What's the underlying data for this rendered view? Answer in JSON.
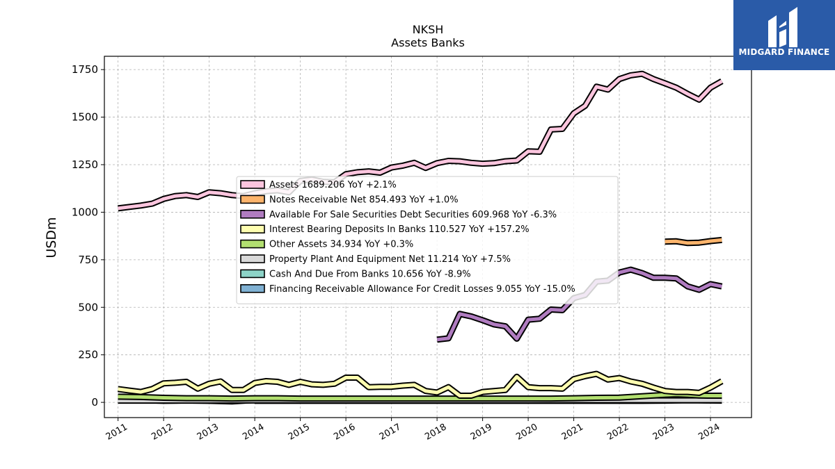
{
  "brand": {
    "logo_text": "MIDGARD FINANCE",
    "logo_bg": "#2a5ba8",
    "logo_icon": "midgard-mark-icon"
  },
  "chart_data": {
    "type": "line",
    "title": "NKSH",
    "subtitle": "Assets Banks",
    "ylabel": "USDm",
    "xlabel": "",
    "xlim": [
      2010.7,
      2024.9
    ],
    "ylim": [
      -80,
      1820
    ],
    "yticks": [
      0,
      250,
      500,
      750,
      1000,
      1250,
      1500,
      1750
    ],
    "xticks": [
      2011,
      2012,
      2013,
      2014,
      2015,
      2016,
      2017,
      2018,
      2019,
      2020,
      2021,
      2022,
      2023,
      2024
    ],
    "grid": true,
    "legend_position": "center",
    "series": [
      {
        "name": "Assets  1689.206 YoY +2.1%",
        "color": "#fcc5de",
        "values": [
          [
            2011.0,
            1020
          ],
          [
            2011.25,
            1028
          ],
          [
            2011.5,
            1035
          ],
          [
            2011.75,
            1045
          ],
          [
            2012.0,
            1070
          ],
          [
            2012.25,
            1085
          ],
          [
            2012.5,
            1090
          ],
          [
            2012.75,
            1080
          ],
          [
            2013.0,
            1105
          ],
          [
            2013.25,
            1100
          ],
          [
            2013.5,
            1090
          ],
          [
            2013.75,
            1085
          ],
          [
            2014.0,
            1100
          ],
          [
            2014.25,
            1110
          ],
          [
            2014.5,
            1115
          ],
          [
            2014.75,
            1105
          ],
          [
            2015.0,
            1165
          ],
          [
            2015.25,
            1172
          ],
          [
            2015.5,
            1160
          ],
          [
            2015.75,
            1158
          ],
          [
            2016.0,
            1200
          ],
          [
            2016.25,
            1210
          ],
          [
            2016.5,
            1215
          ],
          [
            2016.75,
            1208
          ],
          [
            2017.0,
            1235
          ],
          [
            2017.25,
            1245
          ],
          [
            2017.5,
            1260
          ],
          [
            2017.75,
            1233
          ],
          [
            2018.0,
            1258
          ],
          [
            2018.25,
            1270
          ],
          [
            2018.5,
            1268
          ],
          [
            2018.75,
            1260
          ],
          [
            2019.0,
            1255
          ],
          [
            2019.25,
            1258
          ],
          [
            2019.5,
            1268
          ],
          [
            2019.75,
            1272
          ],
          [
            2020.0,
            1320
          ],
          [
            2020.25,
            1318
          ],
          [
            2020.5,
            1435
          ],
          [
            2020.75,
            1438
          ],
          [
            2021.0,
            1520
          ],
          [
            2021.25,
            1560
          ],
          [
            2021.5,
            1660
          ],
          [
            2021.75,
            1645
          ],
          [
            2022.0,
            1700
          ],
          [
            2022.25,
            1720
          ],
          [
            2022.5,
            1728
          ],
          [
            2022.75,
            1700
          ],
          [
            2023.0,
            1678
          ],
          [
            2023.25,
            1655
          ],
          [
            2023.5,
            1622
          ],
          [
            2023.75,
            1592
          ],
          [
            2024.0,
            1655
          ],
          [
            2024.25,
            1689
          ]
        ]
      },
      {
        "name": "Notes Receivable Net  854.493 YoY +1.0%",
        "color": "#fdb46c",
        "values": [
          [
            2023.0,
            845
          ],
          [
            2023.25,
            847
          ],
          [
            2023.5,
            838
          ],
          [
            2023.75,
            840
          ],
          [
            2024.0,
            848
          ],
          [
            2024.25,
            854
          ]
        ]
      },
      {
        "name": "Available For Sale Securities Debt Securities  609.968 YoY -6.3%",
        "color": "#b07cc0",
        "values": [
          [
            2018.0,
            330
          ],
          [
            2018.25,
            337
          ],
          [
            2018.5,
            465
          ],
          [
            2018.75,
            452
          ],
          [
            2019.0,
            432
          ],
          [
            2019.25,
            410
          ],
          [
            2019.5,
            400
          ],
          [
            2019.75,
            335
          ],
          [
            2020.0,
            435
          ],
          [
            2020.25,
            440
          ],
          [
            2020.5,
            488
          ],
          [
            2020.75,
            485
          ],
          [
            2021.0,
            548
          ],
          [
            2021.25,
            565
          ],
          [
            2021.5,
            635
          ],
          [
            2021.75,
            640
          ],
          [
            2022.0,
            683
          ],
          [
            2022.25,
            698
          ],
          [
            2022.5,
            680
          ],
          [
            2022.75,
            655
          ],
          [
            2023.0,
            655
          ],
          [
            2023.25,
            652
          ],
          [
            2023.5,
            610
          ],
          [
            2023.75,
            592
          ],
          [
            2024.0,
            622
          ],
          [
            2024.25,
            610
          ]
        ]
      },
      {
        "name": "Interest Bearing Deposits In Banks  110.527 YoY +157.2%",
        "color": "#fefeb0",
        "values": [
          [
            2011.0,
            70
          ],
          [
            2011.25,
            62
          ],
          [
            2011.5,
            55
          ],
          [
            2011.75,
            70
          ],
          [
            2012.0,
            100
          ],
          [
            2012.25,
            103
          ],
          [
            2012.5,
            108
          ],
          [
            2012.75,
            72
          ],
          [
            2013.0,
            98
          ],
          [
            2013.25,
            110
          ],
          [
            2013.5,
            65
          ],
          [
            2013.75,
            65
          ],
          [
            2014.0,
            102
          ],
          [
            2014.25,
            112
          ],
          [
            2014.5,
            108
          ],
          [
            2014.75,
            92
          ],
          [
            2015.0,
            108
          ],
          [
            2015.25,
            95
          ],
          [
            2015.5,
            92
          ],
          [
            2015.75,
            98
          ],
          [
            2016.0,
            130
          ],
          [
            2016.25,
            130
          ],
          [
            2016.5,
            80
          ],
          [
            2016.75,
            82
          ],
          [
            2017.0,
            82
          ],
          [
            2017.25,
            88
          ],
          [
            2017.5,
            92
          ],
          [
            2017.75,
            60
          ],
          [
            2018.0,
            52
          ],
          [
            2018.25,
            80
          ],
          [
            2018.5,
            35
          ],
          [
            2018.75,
            35
          ],
          [
            2019.0,
            55
          ],
          [
            2019.25,
            60
          ],
          [
            2019.5,
            65
          ],
          [
            2019.75,
            135
          ],
          [
            2020.0,
            80
          ],
          [
            2020.25,
            75
          ],
          [
            2020.5,
            75
          ],
          [
            2020.75,
            72
          ],
          [
            2021.0,
            122
          ],
          [
            2021.25,
            138
          ],
          [
            2021.5,
            150
          ],
          [
            2021.75,
            120
          ],
          [
            2022.0,
            128
          ],
          [
            2022.25,
            110
          ],
          [
            2022.5,
            98
          ],
          [
            2022.75,
            78
          ],
          [
            2023.0,
            60
          ],
          [
            2023.25,
            55
          ],
          [
            2023.5,
            55
          ],
          [
            2023.75,
            50
          ],
          [
            2024.0,
            78
          ],
          [
            2024.25,
            111
          ]
        ]
      },
      {
        "name": "Other Assets  34.934 YoY +0.3%",
        "color": "#b2df70",
        "values": [
          [
            2011.0,
            30
          ],
          [
            2011.5,
            28
          ],
          [
            2012.0,
            24
          ],
          [
            2012.5,
            22
          ],
          [
            2013.0,
            22
          ],
          [
            2013.5,
            20
          ],
          [
            2014.0,
            22
          ],
          [
            2014.5,
            22
          ],
          [
            2015.0,
            20
          ],
          [
            2015.5,
            20
          ],
          [
            2016.0,
            20
          ],
          [
            2016.5,
            20
          ],
          [
            2017.0,
            20
          ],
          [
            2017.5,
            20
          ],
          [
            2018.0,
            20
          ],
          [
            2018.5,
            20
          ],
          [
            2019.0,
            20
          ],
          [
            2019.5,
            20
          ],
          [
            2020.0,
            20
          ],
          [
            2020.5,
            20
          ],
          [
            2021.0,
            22
          ],
          [
            2021.5,
            24
          ],
          [
            2022.0,
            25
          ],
          [
            2022.5,
            32
          ],
          [
            2023.0,
            40
          ],
          [
            2023.25,
            42
          ],
          [
            2023.5,
            40
          ],
          [
            2023.75,
            36
          ],
          [
            2024.0,
            35
          ],
          [
            2024.25,
            35
          ]
        ]
      },
      {
        "name": "Property Plant And Equipment Net  11.214 YoY +7.5%",
        "color": "#d9d9d9",
        "values": [
          [
            2011.0,
            9
          ],
          [
            2012.0,
            9
          ],
          [
            2013.0,
            9
          ],
          [
            2014.0,
            10
          ],
          [
            2015.0,
            10
          ],
          [
            2016.0,
            10
          ],
          [
            2017.0,
            10
          ],
          [
            2018.0,
            10
          ],
          [
            2019.0,
            10
          ],
          [
            2020.0,
            10
          ],
          [
            2021.0,
            11
          ],
          [
            2022.0,
            11
          ],
          [
            2023.0,
            11
          ],
          [
            2024.0,
            11
          ],
          [
            2024.25,
            11
          ]
        ]
      },
      {
        "name": "Cash And Due From Banks  10.656 YoY -8.9%",
        "color": "#8dd3c7",
        "values": [
          [
            2011.0,
            15
          ],
          [
            2011.5,
            12
          ],
          [
            2012.0,
            8
          ],
          [
            2012.5,
            10
          ],
          [
            2013.0,
            8
          ],
          [
            2013.5,
            5
          ],
          [
            2014.0,
            12
          ],
          [
            2014.5,
            10
          ],
          [
            2015.0,
            10
          ],
          [
            2015.5,
            10
          ],
          [
            2016.0,
            10
          ],
          [
            2016.5,
            10
          ],
          [
            2017.0,
            12
          ],
          [
            2017.5,
            12
          ],
          [
            2018.0,
            12
          ],
          [
            2018.5,
            12
          ],
          [
            2019.0,
            12
          ],
          [
            2019.5,
            12
          ],
          [
            2020.0,
            12
          ],
          [
            2020.5,
            12
          ],
          [
            2021.0,
            12
          ],
          [
            2021.5,
            12
          ],
          [
            2022.0,
            12
          ],
          [
            2022.5,
            12
          ],
          [
            2023.0,
            12
          ],
          [
            2023.5,
            12
          ],
          [
            2024.0,
            11
          ],
          [
            2024.25,
            11
          ]
        ]
      },
      {
        "name": "Financing Receivable Allowance For Credit Losses  9.055 YoY -15.0%",
        "color": "#80b1d3",
        "values": [
          [
            2014.0,
            8
          ],
          [
            2014.5,
            8
          ],
          [
            2015.0,
            8
          ],
          [
            2015.5,
            8
          ],
          [
            2016.0,
            8
          ],
          [
            2016.5,
            8
          ],
          [
            2017.0,
            8
          ],
          [
            2017.5,
            8
          ],
          [
            2018.0,
            8
          ],
          [
            2018.5,
            8
          ],
          [
            2019.0,
            8
          ],
          [
            2019.5,
            8
          ],
          [
            2020.0,
            8
          ],
          [
            2020.5,
            8
          ],
          [
            2021.0,
            8
          ],
          [
            2021.5,
            8
          ],
          [
            2022.0,
            8
          ],
          [
            2022.5,
            8
          ],
          [
            2023.0,
            9
          ],
          [
            2023.5,
            11
          ],
          [
            2024.0,
            10
          ],
          [
            2024.25,
            9
          ]
        ]
      }
    ]
  }
}
